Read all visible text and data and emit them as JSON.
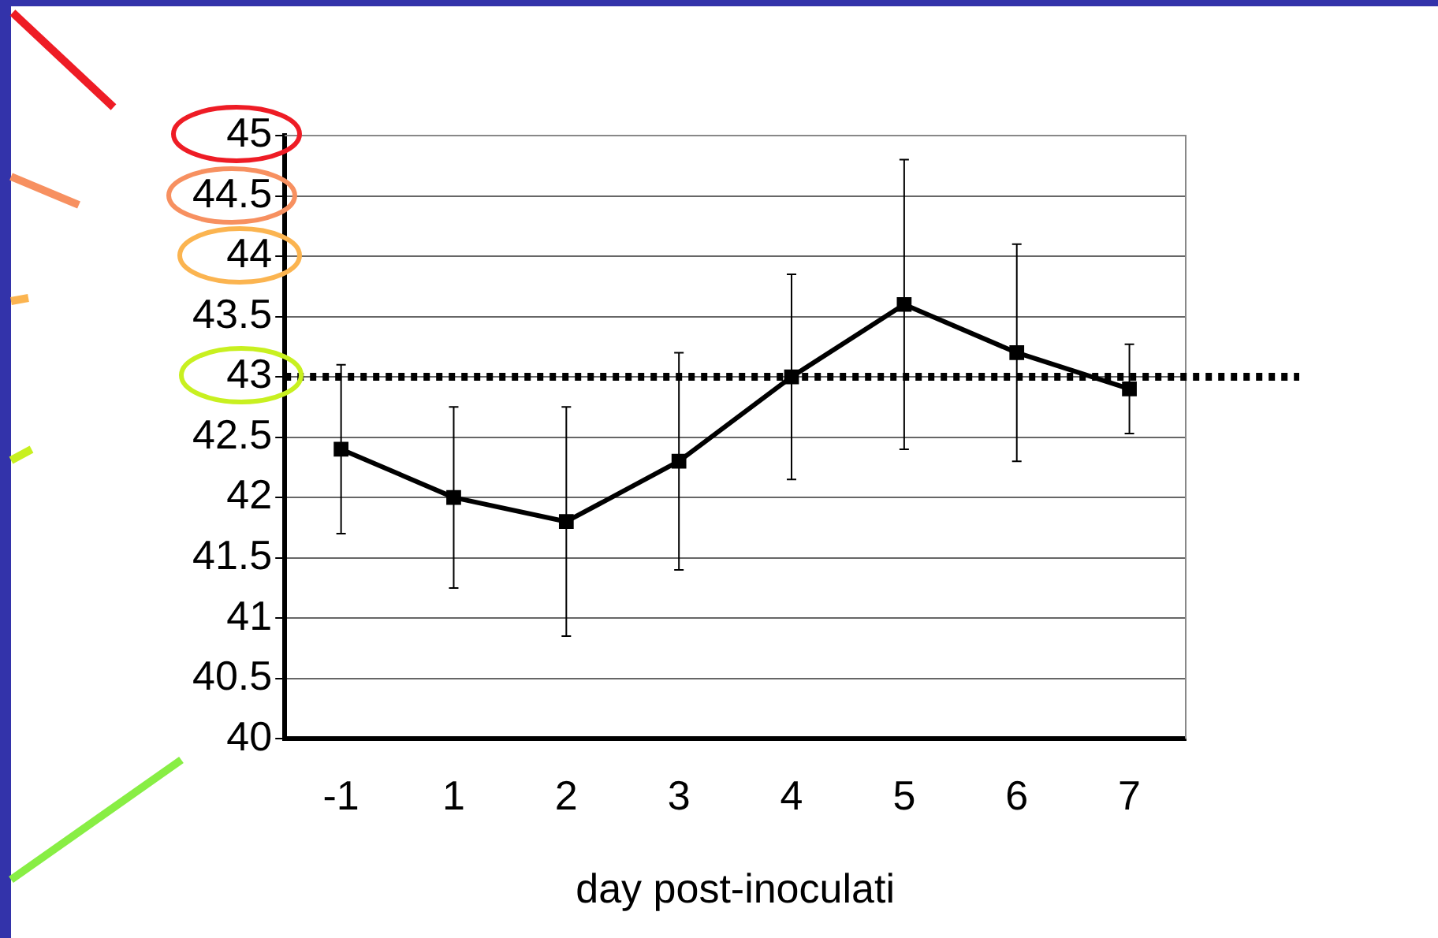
{
  "chart_data": {
    "type": "line",
    "xlabel": "day post-inoculati",
    "categories": [
      "-1",
      "1",
      "2",
      "3",
      "4",
      "5",
      "6",
      "7"
    ],
    "series": [
      {
        "color": "#000000",
        "values": [
          42.4,
          42.0,
          41.8,
          42.3,
          43.0,
          43.6,
          43.2,
          42.9
        ],
        "errors": [
          0.7,
          0.75,
          0.95,
          0.9,
          0.85,
          1.2,
          0.9,
          0.37
        ]
      }
    ],
    "ylim": [
      40,
      45
    ],
    "yticks": [
      40,
      40.5,
      41,
      41.5,
      42,
      42.5,
      43,
      43.5,
      44,
      44.5,
      45
    ],
    "ref_lines": [
      {
        "axis": "y",
        "value": 43,
        "color": "#000000",
        "line_style": "dotted"
      }
    ],
    "grid": "y",
    "legend": false,
    "marker": "square",
    "line_style": "solid"
  }
}
